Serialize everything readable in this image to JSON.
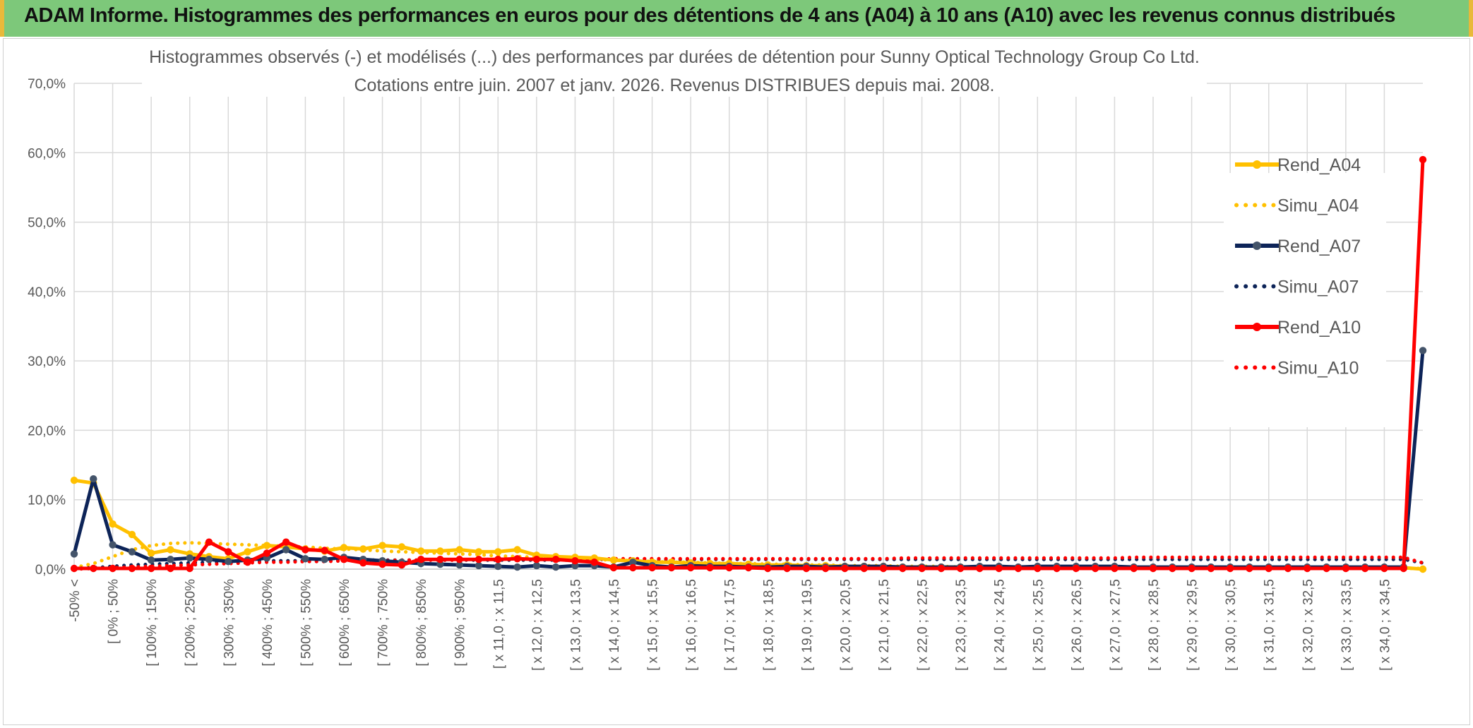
{
  "banner": {
    "title": "ADAM Informe. Histogrammes des performances en euros pour des détentions de 4 ans (A04) à 10 ans (A10) avec les revenus connus distribués"
  },
  "chart_data": {
    "type": "line",
    "title": "Histogrammes observés (-) et modélisés (...) des performances par durées de détention pour Sunny Optical Technology Group Co Ltd.",
    "subtitle": "Cotations entre juin. 2007 et janv. 2026. Revenus DISTRIBUES depuis mai. 2008.",
    "ylim": [
      0,
      70
    ],
    "yticks": [
      "0,0%",
      "10,0%",
      "20,0%",
      "30,0%",
      "40,0%",
      "50,0%",
      "60,0%",
      "70,0%"
    ],
    "xtick_labels": [
      "-50% <",
      "[ 0% ; 50%",
      "[ 100% ; 150%",
      "[ 200% ; 250%",
      "[ 300% ; 350%",
      "[ 400% ; 450%",
      "[ 500% ; 550%",
      "[ 600% ; 650%",
      "[ 700% ; 750%",
      "[ 800% ; 850%",
      "[ 900% ; 950%",
      "[ x 11,0 ; x 11,5",
      "[ x 12,0 ; x 12,5",
      "[ x 13,0 ; x 13,5",
      "[ x 14,0 ; x 14,5",
      "[ x 15,0 ; x 15,5",
      "[ x 16,0 ; x 16,5",
      "[ x 17,0 ; x 17,5",
      "[ x 18,0 ; x 18,5",
      "[ x 19,0 ; x 19,5",
      "[ x 20,0 ; x 20,5",
      "[ x 21,0 ; x 21,5",
      "[ x 22,0 ; x 22,5",
      "[ x 23,0 ; x 23,5",
      "[ x 24,0 ; x 24,5",
      "[ x 25,0 ; x 25,5",
      "[ x 26,0 ; x 26,5",
      "[ x 27,0 ; x 27,5",
      "[ x 28,0 ; x 28,5",
      "[ x 29,0 ; x 29,5",
      "[ x 30,0 ; x 30,5",
      "[ x 31,0 ; x 31,5",
      "[ x 32,0 ; x 32,5",
      "[ x 33,0 ; x 33,5",
      "[ x 34,0 ; x 34,5"
    ],
    "legend_position": "right",
    "series": [
      {
        "name": "Rend_A04",
        "color": "#ffc000",
        "style": "solid",
        "values": [
          12.8,
          12.4,
          6.5,
          5,
          2.3,
          2.8,
          2.2,
          1.8,
          1.5,
          2.5,
          3.4,
          3.2,
          2.9,
          2.6,
          3.1,
          2.9,
          3.4,
          3.2,
          2.6,
          2.6,
          2.8,
          2.5,
          2.5,
          2.8,
          2,
          1.8,
          1.7,
          1.6,
          1.3,
          1.2,
          1,
          1,
          0.9,
          0.8,
          0.8,
          0.7,
          0.6,
          0.6,
          0.5,
          0.5,
          0.4,
          0.4,
          0.4,
          0.3,
          0.3,
          0.3,
          0.3,
          0.3,
          0.2,
          0.2,
          0.2,
          0.2,
          0.2,
          0.2,
          0.2,
          0.2,
          0.2,
          0.2,
          0.2,
          0.2,
          0.2,
          0.2,
          0.2,
          0.2,
          0.2,
          0.2,
          0.2,
          0.2,
          0.2,
          0.2,
          0
        ]
      },
      {
        "name": "Simu_A04",
        "color": "#ffc000",
        "style": "dotted",
        "values": [
          0.2,
          0.8,
          1.8,
          2.8,
          3.4,
          3.7,
          3.8,
          3.7,
          3.6,
          3.5,
          3.4,
          3.3,
          3.2,
          3,
          2.9,
          2.8,
          2.6,
          2.5,
          2.4,
          2.3,
          2.2,
          2.1,
          1.9,
          1.8,
          1.7,
          1.6,
          1.5,
          1.4,
          1.3,
          1.2,
          1.1,
          1,
          1,
          0.9,
          0.8,
          0.8,
          0.7,
          0.7,
          0.6,
          0.6,
          0.5,
          0.5,
          0.5,
          0.4,
          0.4,
          0.4,
          0.3,
          0.3,
          0.3,
          0.3,
          0.3,
          0.2,
          0.2,
          0.2,
          0.2,
          0.2,
          0.2,
          0.2,
          0.2,
          0.2,
          0.1,
          0.1,
          0.1,
          0.1,
          0.1,
          0.1,
          0.1,
          0.1,
          0.1,
          0.1,
          0.1
        ]
      },
      {
        "name": "Rend_A07",
        "color": "#0d2458",
        "style": "solid",
        "values": [
          2.2,
          13,
          3.5,
          2.5,
          1.3,
          1.4,
          1.6,
          1.4,
          1.1,
          1.3,
          1.6,
          2.8,
          1.5,
          1.4,
          1.7,
          1.4,
          1.2,
          1,
          0.8,
          0.7,
          0.6,
          0.5,
          0.4,
          0.3,
          0.5,
          0.3,
          0.5,
          0.5,
          0.3,
          1,
          0.5,
          0.3,
          0.5,
          0.4,
          0.4,
          0.3,
          0.3,
          0.4,
          0.4,
          0.3,
          0.4,
          0.4,
          0.4,
          0.3,
          0.3,
          0.3,
          0.3,
          0.4,
          0.4,
          0.3,
          0.4,
          0.4,
          0.4,
          0.4,
          0.4,
          0.3,
          0.3,
          0.3,
          0.3,
          0.3,
          0.3,
          0.3,
          0.3,
          0.3,
          0.3,
          0.3,
          0.3,
          0.3,
          0.3,
          0.3,
          31.5
        ]
      },
      {
        "name": "Simu_A07",
        "color": "#0d2458",
        "style": "dotted",
        "values": [
          0.1,
          0.2,
          0.4,
          0.6,
          0.7,
          0.8,
          0.9,
          1,
          1.1,
          1.1,
          1.2,
          1.2,
          1.2,
          1.3,
          1.3,
          1.3,
          1.3,
          1.3,
          1.3,
          1.3,
          1.3,
          1.3,
          1.3,
          1.3,
          1.3,
          1.3,
          1.3,
          1.4,
          1.4,
          1.4,
          1.4,
          1.4,
          1.4,
          1.4,
          1.4,
          1.4,
          1.4,
          1.4,
          1.4,
          1.4,
          1.4,
          1.4,
          1.4,
          1.4,
          1.4,
          1.4,
          1.4,
          1.4,
          1.4,
          1.4,
          1.4,
          1.4,
          1.4,
          1.4,
          1.4,
          1.4,
          1.4,
          1.4,
          1.4,
          1.4,
          1.4,
          1.4,
          1.4,
          1.4,
          1.4,
          1.4,
          1.4,
          1.4,
          1.4,
          1.4,
          0.9
        ]
      },
      {
        "name": "Rend_A10",
        "color": "#ff0000",
        "style": "solid",
        "values": [
          0.1,
          0.1,
          0.1,
          0.1,
          0.1,
          0.1,
          0.1,
          3.9,
          2.5,
          1,
          2.3,
          3.9,
          2.8,
          2.7,
          1.4,
          0.9,
          0.7,
          0.6,
          1.4,
          1.4,
          1.4,
          1.4,
          1.4,
          1.5,
          1.4,
          1.4,
          1.2,
          1,
          0.2,
          0.2,
          0.2,
          0.2,
          0.2,
          0.2,
          0.2,
          0.2,
          0.1,
          0.1,
          0.1,
          0.1,
          0.1,
          0.1,
          0.1,
          0.1,
          0.1,
          0.1,
          0.1,
          0.1,
          0.1,
          0.1,
          0.1,
          0.1,
          0.1,
          0.1,
          0.1,
          0.1,
          0.1,
          0.1,
          0.1,
          0.1,
          0.1,
          0.1,
          0.1,
          0.1,
          0.1,
          0.1,
          0.1,
          0.1,
          0.1,
          0.1,
          59
        ]
      },
      {
        "name": "Simu_A10",
        "color": "#ff0000",
        "style": "dotted",
        "values": [
          0,
          0.1,
          0.2,
          0.3,
          0.4,
          0.5,
          0.6,
          0.7,
          0.8,
          0.9,
          1,
          1,
          1.1,
          1.1,
          1.2,
          1.2,
          1.2,
          1.3,
          1.3,
          1.3,
          1.3,
          1.4,
          1.4,
          1.4,
          1.4,
          1.4,
          1.4,
          1.4,
          1.5,
          1.5,
          1.5,
          1.5,
          1.5,
          1.5,
          1.5,
          1.5,
          1.5,
          1.5,
          1.5,
          1.5,
          1.5,
          1.5,
          1.5,
          1.6,
          1.6,
          1.6,
          1.6,
          1.6,
          1.6,
          1.6,
          1.6,
          1.6,
          1.6,
          1.6,
          1.6,
          1.7,
          1.7,
          1.7,
          1.7,
          1.7,
          1.7,
          1.7,
          1.7,
          1.7,
          1.7,
          1.7,
          1.7,
          1.7,
          1.7,
          1.7,
          0.9
        ]
      }
    ]
  }
}
